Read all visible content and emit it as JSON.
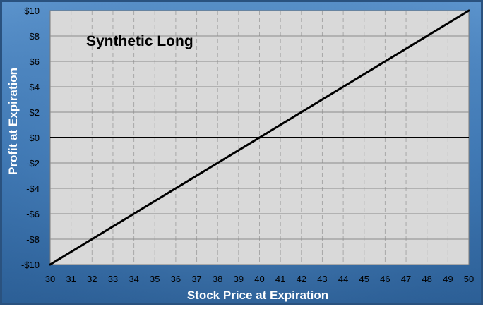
{
  "chart_data": {
    "type": "line",
    "title": "Synthetic Long",
    "xlabel": "Stock Price at Expiration",
    "ylabel": "Profit at Expiration",
    "xlim": [
      30,
      50
    ],
    "ylim": [
      -10,
      10
    ],
    "x_ticks": [
      "30",
      "31",
      "32",
      "33",
      "34",
      "35",
      "36",
      "37",
      "38",
      "39",
      "40",
      "41",
      "42",
      "43",
      "44",
      "45",
      "46",
      "47",
      "48",
      "49",
      "50"
    ],
    "y_ticks": [
      "-$10",
      "-$8",
      "-$6",
      "-$4",
      "-$2",
      "$0",
      "$2",
      "$4",
      "$6",
      "$8",
      "$10"
    ],
    "series": [
      {
        "x": [
          30,
          50
        ],
        "y": [
          -10,
          10
        ]
      }
    ],
    "grid": {
      "horizontal": true,
      "vertical_dashed": true
    },
    "zero_line": 0,
    "colors": {
      "frame_outer": "#2f5f93",
      "frame_inner": "#6aa1d6",
      "plot_bg": "#d9d9d9",
      "grid": "#9a9a9a",
      "line": "#000000",
      "label_text": "#ffffff"
    }
  }
}
